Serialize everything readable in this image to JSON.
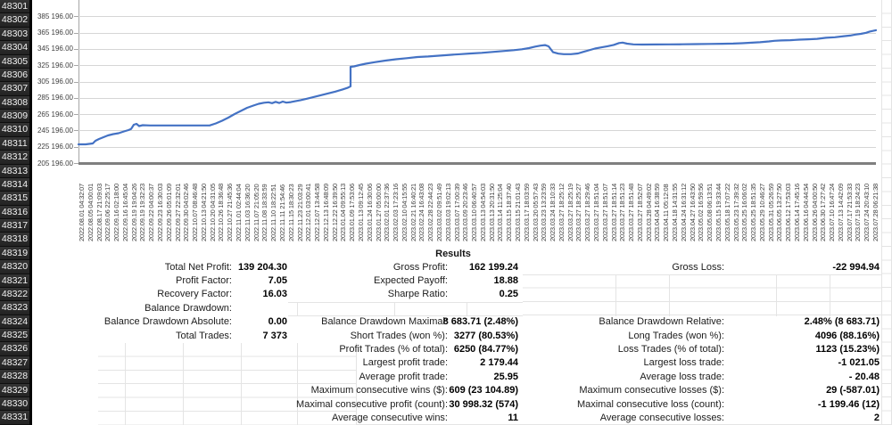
{
  "sheet": {
    "row_numbers": [
      "48301",
      "48302",
      "48303",
      "48304",
      "48305",
      "48306",
      "48307",
      "48308",
      "48309",
      "48310",
      "48311",
      "48312",
      "48313",
      "48314",
      "48315",
      "48316",
      "48317",
      "48318",
      "48319",
      "48320",
      "48321",
      "48322",
      "48323",
      "48324",
      "48325",
      "48326",
      "48327",
      "48328",
      "48329",
      "48330",
      "48331"
    ]
  },
  "chart_data": {
    "type": "line",
    "title": "",
    "xlabel": "",
    "ylabel": "",
    "legend": "none",
    "grid": true,
    "series_color": "#4472c4",
    "ylim": [
      205196,
      405196
    ],
    "y_tick_step": 20000,
    "y_ticks": [
      "385 196.00",
      "365 196.00",
      "345 196.00",
      "325 196.00",
      "305 196.00",
      "285 196.00",
      "265 196.00",
      "245 196.00",
      "225 196.00",
      "205 196.00"
    ],
    "x_labels": [
      "2022.08.01 04:32:07",
      "2022.08.05 04:00:01",
      "2022.08.17 21:09:03",
      "2022.09.06 22:25:17",
      "2022.09.16 02:18:00",
      "2022.09.16 16:45:04",
      "2022.09.19 19:04:26",
      "2022.09.19 19:32:23",
      "2022.09.22 04:00:37",
      "2022.09.23 16:30:03",
      "2022.09.26 05:01:09",
      "2022.09.27 22:32:01",
      "2022.09.30 04:02:46",
      "2022.10.07 08:46:48",
      "2022.10.13 04:21:50",
      "2022.10.20 04:31:05",
      "2022.10.26 18:36:48",
      "2022.10.27 21:45:36",
      "2022.11.01 02:44:04",
      "2022.11.03 16:36:20",
      "2022.11.07 21:05:20",
      "2022.11.08 18:33:59",
      "2022.11.10 18:22:51",
      "2022.11.11 21:54:46",
      "2022.11.15 18:30:23",
      "2022.11.23 21:03:29",
      "2022.12.01 03:00:41",
      "2022.12.07 13:44:58",
      "2022.12.13 16:48:09",
      "2022.12.22 16:39:50",
      "2023.01.04 09:55:13",
      "2023.01.09 17:53:06",
      "2023.01.13 09:12:45",
      "2023.01.24 16:30:06",
      "2023.01.27 05:00:00",
      "2023.02.01 22:37:36",
      "2023.02.03 17:23:16",
      "2023.02.10 04:15:55",
      "2023.02.21 16:40:21",
      "2023.02.24 16:43:08",
      "2023.02.28 22:44:23",
      "2023.03.02 09:51:49",
      "2023.03.03 19:02:13",
      "2023.03.07 17:00:39",
      "2023.03.09 20:23:46",
      "2023.03.10 06:40:57",
      "2023.03.13 04:54:03",
      "2023.03.13 20:31:50",
      "2023.03.14 11:25:04",
      "2023.03.15 18:37:40",
      "2023.03.15 21:01:43",
      "2023.03.17 18:03:59",
      "2023.03.20 05:57:43",
      "2023.03.23 13:23:59",
      "2023.03.24 18:10:33",
      "2023.03.27 18:25:12",
      "2023.03.27 18:25:19",
      "2023.03.27 18:25:27",
      "2023.03.27 18:29:46",
      "2023.03.27 18:51:04",
      "2023.03.27 18:51:07",
      "2023.03.27 18:51:14",
      "2023.03.27 18:51:23",
      "2023.03.27 18:51:48",
      "2023.03.27 18:52:07",
      "2023.03.28 04:49:02",
      "2023.04.04 16:38:59",
      "2023.04.11 05:12:08",
      "2023.04.18 14:31:55",
      "2023.04.24 16:31:12",
      "2023.04.27 16:43:50",
      "2023.05.02 16:59:56",
      "2023.05.08 06:13:51",
      "2023.05.15 19:33:44",
      "2023.05.18 17:07:22",
      "2023.05.23 17:39:32",
      "2023.05.25 16:06:02",
      "2023.05.25 18:51:35",
      "2023.05.29 10:46:27",
      "2023.05.31 05:26:59",
      "2023.06.05 13:27:50",
      "2023.06.12 17:53:03",
      "2023.06.14 17:45:16",
      "2023.06.16 04:44:54",
      "2023.06.26 04:00:50",
      "2023.06.30 17:27:42",
      "2023.07.10 16:47:24",
      "2023.07.13 14:42:09",
      "2023.07.17 21:53:33",
      "2023.07.19 18:24:23",
      "2023.07.24 20:43:10",
      "2023.07.28 06:21:38"
    ],
    "curve": [
      [
        0,
        228100
      ],
      [
        8,
        228100
      ],
      [
        16,
        229200
      ],
      [
        19,
        232500
      ],
      [
        23,
        234700
      ],
      [
        28,
        236900
      ],
      [
        33,
        239100
      ],
      [
        39,
        240700
      ],
      [
        45,
        241800
      ],
      [
        51,
        244000
      ],
      [
        56,
        245600
      ],
      [
        59,
        247000
      ],
      [
        62,
        252200
      ],
      [
        65,
        253300
      ],
      [
        68,
        250600
      ],
      [
        72,
        251600
      ],
      [
        80,
        251300
      ],
      [
        147,
        251300
      ],
      [
        154,
        253800
      ],
      [
        161,
        257100
      ],
      [
        168,
        260900
      ],
      [
        175,
        265300
      ],
      [
        182,
        269100
      ],
      [
        189,
        273000
      ],
      [
        196,
        275700
      ],
      [
        202,
        277900
      ],
      [
        208,
        279200
      ],
      [
        213,
        279700
      ],
      [
        217,
        278600
      ],
      [
        221,
        280300
      ],
      [
        225,
        278900
      ],
      [
        229,
        280600
      ],
      [
        233,
        279300
      ],
      [
        238,
        279900
      ],
      [
        243,
        281000
      ],
      [
        249,
        282400
      ],
      [
        256,
        284100
      ],
      [
        264,
        286300
      ],
      [
        272,
        288500
      ],
      [
        280,
        290700
      ],
      [
        288,
        292800
      ],
      [
        296,
        295500
      ],
      [
        302,
        297700
      ],
      [
        305,
        299300
      ],
      [
        305,
        323200
      ],
      [
        309,
        323800
      ],
      [
        315,
        325400
      ],
      [
        322,
        327100
      ],
      [
        332,
        328900
      ],
      [
        344,
        330900
      ],
      [
        356,
        332500
      ],
      [
        368,
        333800
      ],
      [
        380,
        335300
      ],
      [
        392,
        335900
      ],
      [
        404,
        336900
      ],
      [
        416,
        337900
      ],
      [
        428,
        338700
      ],
      [
        440,
        339600
      ],
      [
        452,
        340400
      ],
      [
        464,
        341500
      ],
      [
        476,
        342600
      ],
      [
        488,
        343700
      ],
      [
        497,
        344800
      ],
      [
        505,
        346200
      ],
      [
        512,
        348000
      ],
      [
        518,
        349200
      ],
      [
        523,
        349900
      ],
      [
        527,
        348400
      ],
      [
        532,
        341200
      ],
      [
        538,
        339400
      ],
      [
        544,
        338700
      ],
      [
        552,
        338700
      ],
      [
        560,
        339600
      ],
      [
        566,
        341600
      ],
      [
        572,
        343400
      ],
      [
        579,
        345600
      ],
      [
        586,
        347100
      ],
      [
        593,
        348500
      ],
      [
        600,
        350100
      ],
      [
        606,
        352400
      ],
      [
        610,
        353000
      ],
      [
        615,
        351600
      ],
      [
        622,
        350800
      ],
      [
        632,
        350600
      ],
      [
        647,
        350700
      ],
      [
        662,
        350800
      ],
      [
        677,
        350900
      ],
      [
        692,
        351100
      ],
      [
        707,
        351300
      ],
      [
        722,
        351500
      ],
      [
        734,
        351800
      ],
      [
        744,
        352200
      ],
      [
        755,
        352800
      ],
      [
        764,
        353400
      ],
      [
        774,
        354400
      ],
      [
        780,
        355100
      ],
      [
        788,
        355600
      ],
      [
        798,
        355900
      ],
      [
        808,
        356600
      ],
      [
        818,
        357000
      ],
      [
        828,
        357500
      ],
      [
        838,
        358900
      ],
      [
        848,
        359500
      ],
      [
        858,
        360800
      ],
      [
        865,
        361600
      ],
      [
        871,
        362800
      ],
      [
        877,
        363700
      ],
      [
        883,
        365000
      ],
      [
        887,
        366500
      ],
      [
        891,
        367400
      ],
      [
        894,
        368200
      ]
    ]
  },
  "results": {
    "title": "Results",
    "rows": [
      [
        "Total Net Profit:",
        "139 204.30",
        "Gross Profit:",
        "162 199.24",
        "Gross Loss:",
        "-22 994.94"
      ],
      [
        "Profit Factor:",
        "7.05",
        "Expected Payoff:",
        "18.88",
        "",
        ""
      ],
      [
        "Recovery Factor:",
        "16.03",
        "Sharpe Ratio:",
        "0.25",
        "",
        ""
      ],
      [
        "Balance Drawdown:",
        "",
        "",
        "",
        "",
        ""
      ],
      [
        "Balance Drawdown Absolute:",
        "0.00",
        "Balance Drawdown Maximal:",
        "8 683.71 (2.48%)",
        "Balance Drawdown Relative:",
        "2.48% (8 683.71)"
      ],
      [
        "Total Trades:",
        "7 373",
        "Short Trades (won %):",
        "3277 (80.53%)",
        "Long Trades (won %):",
        "4096 (88.16%)"
      ],
      [
        "",
        "",
        "Profit Trades (% of total):",
        "6250 (84.77%)",
        "Loss Trades (% of total):",
        "1123 (15.23%)"
      ],
      [
        "",
        "",
        "Largest profit trade:",
        "2 179.44",
        "Largest loss trade:",
        "-1 021.05"
      ],
      [
        "",
        "",
        "Average profit trade:",
        "25.95",
        "Average loss trade:",
        "- 20.48"
      ],
      [
        "",
        "",
        "Maximum consecutive wins ($):",
        "609 (23 104.89)",
        "Maximum consecutive losses ($):",
        "29 (-587.01)"
      ],
      [
        "",
        "",
        "Maximal consecutive profit (count):",
        "30 998.32 (574)",
        "Maximal consecutive loss (count):",
        "-1 199.46 (12)"
      ],
      [
        "",
        "",
        "Average consecutive wins:",
        "11",
        "Average consecutive losses:",
        "2"
      ]
    ]
  }
}
